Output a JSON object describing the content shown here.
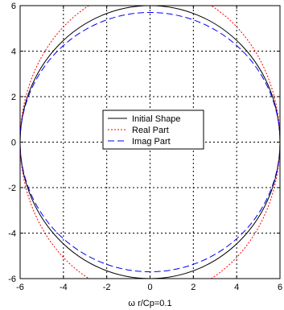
{
  "chart_data": {
    "type": "line",
    "title": "",
    "xlabel": "ω r/Cp=0.1",
    "ylabel": "",
    "xlim": [
      -6,
      6
    ],
    "ylim": [
      -6,
      6
    ],
    "xticks": [
      -6,
      -4,
      -2,
      0,
      2,
      4,
      6
    ],
    "yticks": [
      -6,
      -4,
      -2,
      0,
      2,
      4,
      6
    ],
    "grid": true,
    "legend_position": "center",
    "series": [
      {
        "name": "Initial Shape",
        "color": "#000000",
        "style": "solid",
        "rx": 6.0,
        "ry": 6.0
      },
      {
        "name": "Real Part",
        "color": "#ff0000",
        "style": "dotted",
        "rx": 6.0,
        "ry": 6.8
      },
      {
        "name": "Imag Part",
        "color": "#0000ff",
        "style": "dashed",
        "rx": 6.0,
        "ry": 5.7
      }
    ]
  }
}
